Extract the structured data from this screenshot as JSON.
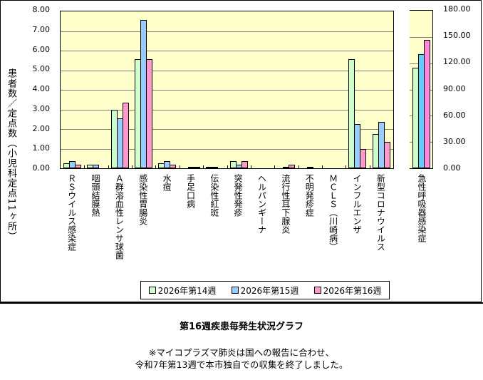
{
  "chart_data": {
    "type": "bar",
    "title": "第16週疾患毎発生状況グラフ",
    "ylabel": "患者数／定点数（小児科定点11ヶ所）",
    "ylim": [
      0,
      8
    ],
    "yticks": [
      "8.00",
      "7.00",
      "6.00",
      "5.00",
      "4.00",
      "3.00",
      "2.00",
      "1.00",
      "0.00"
    ],
    "y2lim": [
      0,
      180
    ],
    "y2ticks": [
      "180.00",
      "150.00",
      "120.00",
      "90.00",
      "60.00",
      "30.00",
      "0.00"
    ],
    "grid": true,
    "legend_position": "bottom",
    "categories": [
      "ＲＳウイルス感染症",
      "咽頭結膜熱",
      "Ａ群溶血性レンサ球菌",
      "感染性胃腸炎",
      "水痘",
      "手足口病",
      "伝染性紅斑",
      "突発性発疹",
      "ヘルパンギーナ",
      "流行性耳下腺炎",
      "不明発疹症",
      "ＭＣＬＳ（川崎病）",
      "インフルエンザ",
      "新型コロナウイルス"
    ],
    "series": [
      {
        "name": "2026年第14週",
        "color": "#ccffcc",
        "values": [
          0.27,
          0.18,
          3.0,
          5.55,
          0.27,
          0.0,
          0.09,
          0.36,
          0.0,
          0.0,
          0.0,
          0.0,
          5.55,
          1.73
        ]
      },
      {
        "name": "2026年第15週",
        "color": "#99ccff",
        "values": [
          0.36,
          0.18,
          2.55,
          7.55,
          0.36,
          0.09,
          0.09,
          0.18,
          0.0,
          0.09,
          0.09,
          0.0,
          2.27,
          2.36
        ]
      },
      {
        "name": "2026年第16週",
        "color": "#ff99cc",
        "values": [
          0.18,
          0.0,
          3.36,
          5.55,
          0.18,
          0.09,
          0.0,
          0.36,
          0.0,
          0.18,
          0.0,
          0.0,
          1.0,
          1.36
        ]
      }
    ],
    "secondary": {
      "categories": [
        "急性呼吸器感染症"
      ],
      "axis": "right",
      "series": [
        {
          "name": "2026年第14週",
          "color": "#ccffcc",
          "values": [
            115.0
          ]
        },
        {
          "name": "2026年第15週",
          "color": "#66ccff",
          "values": [
            130.5
          ]
        },
        {
          "name": "2026年第16週",
          "color": "#ff88dd",
          "values": [
            146.8
          ]
        }
      ]
    }
  },
  "labels": {
    "ylabel": "患者数／定点数（小児科定点11ヶ所）",
    "legend": [
      "2026年第14週",
      "2026年第15週",
      "2026年第16週"
    ],
    "title": "第16週疾患毎発生状況グラフ",
    "note_line1": "※マイコプラズマ肺炎は国への報告に合わせ、",
    "note_line2": "令和7年第13週で本市独自での収集を終了しました。",
    "secondary_category": "急性呼吸器感染症"
  }
}
